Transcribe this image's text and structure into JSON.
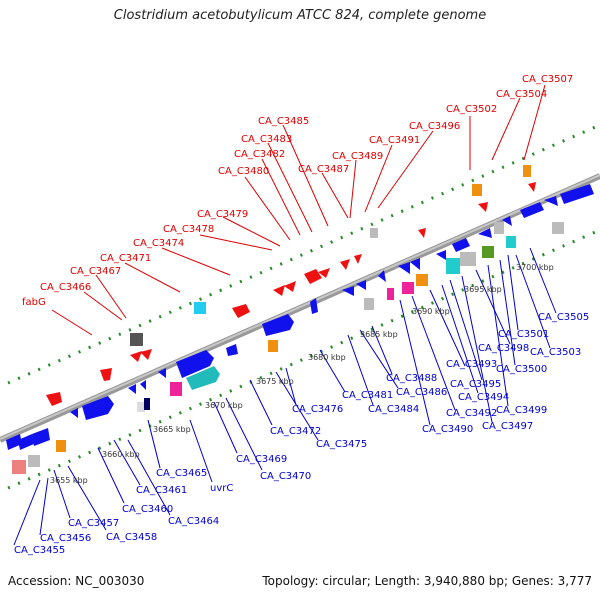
{
  "title": "Clostridium acetobutylicum ATCC 824, complete genome",
  "footer": {
    "accession": "Accession: NC_003030",
    "topology": "Topology: circular; Length: 3,940,880 bp; Genes: 3,777"
  },
  "colors": {
    "forward": "#ee0000",
    "reverse": "#0000ee",
    "axis": "#888888",
    "tick": "#228822",
    "leader_top": "#dd0000",
    "leader_bottom": "#0000cc"
  },
  "scale_labels": [
    "3655 kbp",
    "3660 kbp",
    "3665 kbp",
    "3670 kbp",
    "3675 kbp",
    "3680 kbp",
    "3685 kbp",
    "3690 kbp",
    "3695 kbp",
    "3700 kbp"
  ],
  "top_labels": [
    "fabG",
    "CA_C3466",
    "CA_C3467",
    "CA_C3471",
    "CA_C3474",
    "CA_C3478",
    "CA_C3479",
    "CA_C3480",
    "CA_C3482",
    "CA_C3483",
    "CA_C3485",
    "CA_C3487",
    "CA_C3489",
    "CA_C3491",
    "CA_C3496",
    "CA_C3502",
    "CA_C3504",
    "CA_C3507"
  ],
  "bottom_labels": [
    "CA_C3455",
    "CA_C3456",
    "CA_C3457",
    "CA_C3458",
    "CA_C3460",
    "CA_C3461",
    "CA_C3464",
    "CA_C3465",
    "uvrC",
    "CA_C3469",
    "CA_C3470",
    "CA_C3472",
    "CA_C3475",
    "CA_C3476",
    "CA_C3481",
    "CA_C3484",
    "CA_C3486",
    "CA_C3488",
    "CA_C3490",
    "CA_C3492",
    "CA_C3493",
    "CA_C3494",
    "CA_C3495",
    "CA_C3497",
    "CA_C3498",
    "CA_C3499",
    "CA_C3500",
    "CA_C3501",
    "CA_C3503",
    "CA_C3505"
  ]
}
